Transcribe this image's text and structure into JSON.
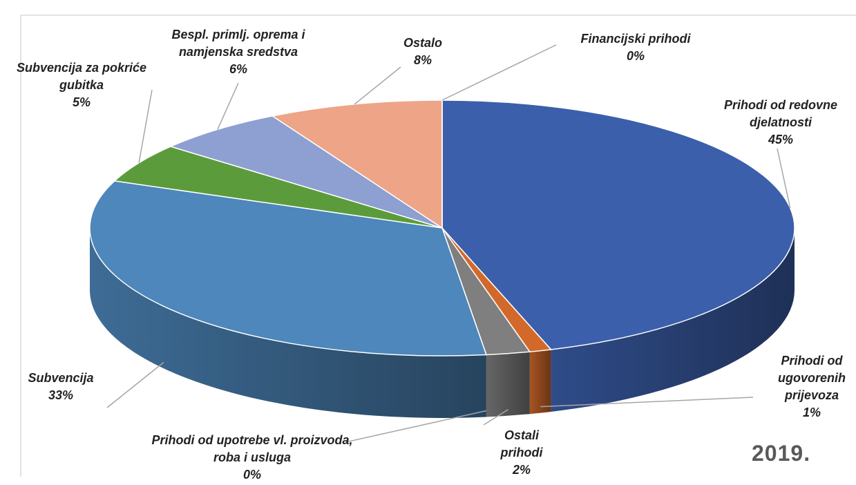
{
  "chart_data": {
    "type": "pie3d",
    "categories": [
      "Prihodi od redovne djelatnosti",
      "Prihodi od ugovorenih prijevoza",
      "Ostali prihodi",
      "Prihodi od upotrebe vl. proizvoda, roba i usluga",
      "Subvencija",
      "Subvencija za pokriće gubitka",
      "Bespl. primlj. oprema i namjenska sredstva",
      "Ostalo",
      "Financijski prihodi"
    ],
    "values": [
      45,
      1,
      2,
      0,
      33,
      5,
      6,
      8,
      0
    ],
    "value_labels": [
      "45%",
      "1%",
      "2%",
      "0%",
      "33%",
      "5%",
      "6%",
      "8%",
      "0%"
    ],
    "colors": [
      "#3b5fab",
      "#d2692a",
      "#7f7f7f",
      "#e0a000",
      "#4d87bb",
      "#5c9b3c",
      "#8e9fd1",
      "#eea487",
      "#a9c4e6"
    ],
    "annotation": "2019."
  }
}
